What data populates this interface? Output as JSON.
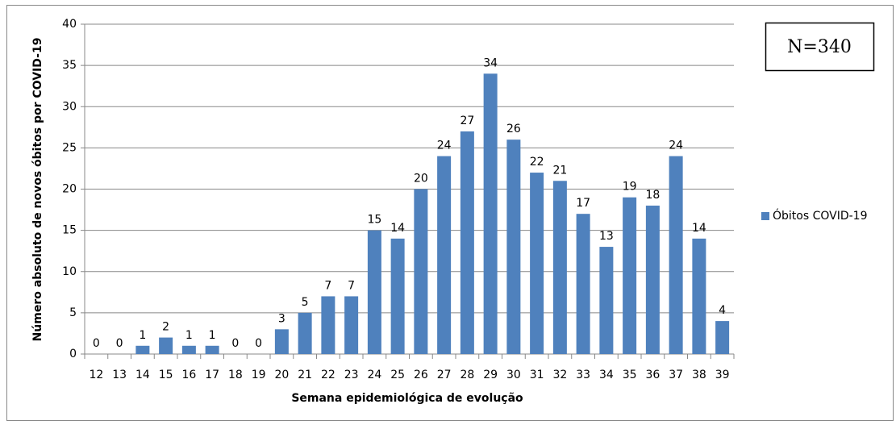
{
  "chart_data": {
    "type": "bar",
    "x_label": "Semana epidemiológica de evolução",
    "y_label": "Número absoluto de novos óbitos por COVID-19",
    "annotation": "N=340",
    "categories": [
      "12",
      "13",
      "14",
      "15",
      "16",
      "17",
      "18",
      "19",
      "20",
      "21",
      "22",
      "23",
      "24",
      "25",
      "26",
      "27",
      "28",
      "29",
      "30",
      "31",
      "32",
      "33",
      "34",
      "35",
      "36",
      "37",
      "38",
      "39"
    ],
    "series": [
      {
        "name": "Óbitos COVID-19",
        "color": "#4f81bd",
        "values": [
          0,
          0,
          1,
          2,
          1,
          1,
          0,
          0,
          3,
          5,
          7,
          7,
          15,
          14,
          20,
          24,
          27,
          34,
          26,
          22,
          21,
          17,
          13,
          19,
          18,
          24,
          14,
          4
        ]
      }
    ],
    "ylim": [
      0,
      40
    ],
    "yticks": [
      0,
      5,
      10,
      15,
      20,
      25,
      30,
      35,
      40
    ],
    "grid": true,
    "legend": "right"
  }
}
